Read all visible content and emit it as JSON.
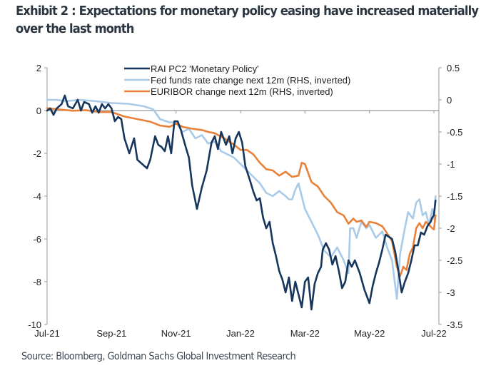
{
  "title_line1": "Exhibit 2 : Expectations for monetary policy easing have increased materially",
  "title_line2": "over the last month",
  "source": "Source: Bloomberg, Goldman Sachs Global Investment Research",
  "colors": {
    "rai": "#17365d",
    "fed": "#a9cbe8",
    "euribor": "#e8823a",
    "axis": "#999999"
  },
  "chart_data": {
    "type": "line",
    "title": "Expectations for monetary policy easing have increased materially over the last month",
    "xlabel": "",
    "ylabel_left": "",
    "ylabel_right": "",
    "x_unit": "months since Jul-21",
    "x_ticks": [
      {
        "label": "Jul-21",
        "x": 0
      },
      {
        "label": "Sep-21",
        "x": 2
      },
      {
        "label": "Nov-21",
        "x": 4
      },
      {
        "label": "Jan-22",
        "x": 6
      },
      {
        "label": "Mar-22",
        "x": 8
      },
      {
        "label": "May-22",
        "x": 10
      },
      {
        "label": "Jul-22",
        "x": 12
      }
    ],
    "xlim": [
      0,
      12
    ],
    "ylim_left": [
      -10,
      2
    ],
    "yticks_left": [
      2,
      0,
      -2,
      -4,
      -6,
      -8,
      -10
    ],
    "ylim_right": [
      -3.5,
      0.5
    ],
    "yticks_right": [
      "0.5",
      "0",
      "-0.5",
      "-1",
      "-1.5",
      "-2",
      "-2.5",
      "-3",
      "-3.5"
    ],
    "right_axis_inverted_note": "RHS, inverted",
    "legend_position": "top-center",
    "grid": false,
    "series": [
      {
        "name": "RAI PC2 'Monetary Policy'",
        "axis": "left",
        "points": [
          [
            0.0,
            0.0
          ],
          [
            0.1,
            0.1
          ],
          [
            0.2,
            -0.2
          ],
          [
            0.3,
            0.1
          ],
          [
            0.45,
            0.3
          ],
          [
            0.55,
            0.7
          ],
          [
            0.65,
            0.2
          ],
          [
            0.8,
            0.1
          ],
          [
            0.95,
            0.5
          ],
          [
            1.05,
            0.0
          ],
          [
            1.15,
            0.4
          ],
          [
            1.3,
            0.3
          ],
          [
            1.4,
            -0.1
          ],
          [
            1.5,
            0.2
          ],
          [
            1.6,
            -0.1
          ],
          [
            1.7,
            0.3
          ],
          [
            1.8,
            0.1
          ],
          [
            1.9,
            0.3
          ],
          [
            2.0,
            0.1
          ],
          [
            2.1,
            -0.5
          ],
          [
            2.2,
            -0.3
          ],
          [
            2.3,
            -0.4
          ],
          [
            2.4,
            -1.3
          ],
          [
            2.55,
            -2.0
          ],
          [
            2.7,
            -1.3
          ],
          [
            2.8,
            -2.3
          ],
          [
            2.95,
            -2.5
          ],
          [
            3.1,
            -2.7
          ],
          [
            3.2,
            -2.3
          ],
          [
            3.35,
            -1.2
          ],
          [
            3.45,
            -1.6
          ],
          [
            3.55,
            -1.7
          ],
          [
            3.65,
            -1.9
          ],
          [
            3.75,
            -1.2
          ],
          [
            3.85,
            -2.0
          ],
          [
            3.95,
            -0.5
          ],
          [
            4.05,
            -0.5
          ],
          [
            4.15,
            -0.9
          ],
          [
            4.3,
            -1.7
          ],
          [
            4.4,
            -2.2
          ],
          [
            4.5,
            -3.5
          ],
          [
            4.65,
            -4.6
          ],
          [
            4.8,
            -3.6
          ],
          [
            4.95,
            -2.8
          ],
          [
            5.1,
            -1.5
          ],
          [
            5.2,
            -1.2
          ],
          [
            5.3,
            -1.8
          ],
          [
            5.4,
            -1.0
          ],
          [
            5.55,
            -1.6
          ],
          [
            5.65,
            -1.2
          ],
          [
            5.75,
            -2.0
          ],
          [
            5.85,
            -1.3
          ],
          [
            5.95,
            -1.0
          ],
          [
            6.05,
            -1.5
          ],
          [
            6.15,
            -2.6
          ],
          [
            6.3,
            -3.3
          ],
          [
            6.4,
            -3.8
          ],
          [
            6.5,
            -4.2
          ],
          [
            6.6,
            -4.1
          ],
          [
            6.7,
            -5.0
          ],
          [
            6.8,
            -5.5
          ],
          [
            6.9,
            -5.2
          ],
          [
            7.0,
            -6.2
          ],
          [
            7.1,
            -6.8
          ],
          [
            7.2,
            -7.5
          ],
          [
            7.3,
            -7.9
          ],
          [
            7.4,
            -8.5
          ],
          [
            7.5,
            -7.8
          ],
          [
            7.6,
            -8.9
          ],
          [
            7.7,
            -8.0
          ],
          [
            7.8,
            -8.6
          ],
          [
            7.9,
            -9.2
          ],
          [
            8.0,
            -8.0
          ],
          [
            8.1,
            -7.8
          ],
          [
            8.2,
            -9.3
          ],
          [
            8.3,
            -8.1
          ],
          [
            8.4,
            -7.6
          ],
          [
            8.5,
            -7.3
          ],
          [
            8.55,
            -6.5
          ],
          [
            8.65,
            -6.2
          ],
          [
            8.75,
            -6.5
          ],
          [
            8.85,
            -7.2
          ],
          [
            8.95,
            -6.8
          ],
          [
            9.05,
            -7.5
          ],
          [
            9.15,
            -8.3
          ],
          [
            9.25,
            -8.0
          ],
          [
            9.35,
            -7.0
          ],
          [
            9.45,
            -7.3
          ],
          [
            9.55,
            -7.0
          ],
          [
            9.7,
            -7.6
          ],
          [
            9.85,
            -8.4
          ],
          [
            10.0,
            -9.0
          ],
          [
            10.1,
            -8.2
          ],
          [
            10.2,
            -7.6
          ],
          [
            10.3,
            -7.1
          ],
          [
            10.4,
            -6.5
          ],
          [
            10.5,
            -5.8
          ],
          [
            10.6,
            -5.9
          ],
          [
            10.7,
            -6.0
          ],
          [
            10.8,
            -6.6
          ],
          [
            10.9,
            -7.5
          ],
          [
            11.0,
            -8.5
          ],
          [
            11.1,
            -8.0
          ],
          [
            11.2,
            -7.6
          ],
          [
            11.3,
            -7.0
          ],
          [
            11.4,
            -6.3
          ],
          [
            11.5,
            -6.3
          ],
          [
            11.6,
            -5.7
          ],
          [
            11.7,
            -5.8
          ],
          [
            11.8,
            -5.4
          ],
          [
            11.9,
            -5.2
          ],
          [
            11.95,
            -5.0
          ],
          [
            12.0,
            -4.9
          ],
          [
            12.05,
            -4.2
          ]
        ]
      },
      {
        "name": "Fed funds rate change next 12m (RHS, inverted)",
        "axis": "right",
        "points": [
          [
            0.0,
            0.0
          ],
          [
            0.3,
            0.0
          ],
          [
            0.6,
            -0.02
          ],
          [
            1.0,
            0.0
          ],
          [
            1.5,
            -0.02
          ],
          [
            2.0,
            -0.05
          ],
          [
            2.5,
            -0.06
          ],
          [
            3.0,
            -0.1
          ],
          [
            3.3,
            -0.15
          ],
          [
            3.5,
            -0.3
          ],
          [
            3.8,
            -0.35
          ],
          [
            4.0,
            -0.35
          ],
          [
            4.2,
            -0.5
          ],
          [
            4.4,
            -0.45
          ],
          [
            4.6,
            -0.6
          ],
          [
            4.8,
            -0.55
          ],
          [
            5.0,
            -0.68
          ],
          [
            5.2,
            -0.65
          ],
          [
            5.4,
            -0.8
          ],
          [
            5.6,
            -0.85
          ],
          [
            5.8,
            -0.9
          ],
          [
            6.0,
            -1.0
          ],
          [
            6.2,
            -1.1
          ],
          [
            6.4,
            -1.2
          ],
          [
            6.6,
            -1.3
          ],
          [
            6.8,
            -1.45
          ],
          [
            7.0,
            -1.5
          ],
          [
            7.2,
            -1.42
          ],
          [
            7.4,
            -1.5
          ],
          [
            7.5,
            -1.55
          ],
          [
            7.6,
            -1.55
          ],
          [
            7.7,
            -1.4
          ],
          [
            7.8,
            -1.3
          ],
          [
            7.9,
            -1.5
          ],
          [
            8.0,
            -1.7
          ],
          [
            8.2,
            -1.9
          ],
          [
            8.4,
            -2.1
          ],
          [
            8.6,
            -2.35
          ],
          [
            8.8,
            -2.45
          ],
          [
            9.0,
            -2.3
          ],
          [
            9.2,
            -2.5
          ],
          [
            9.35,
            -2.7
          ],
          [
            9.4,
            -2.0
          ],
          [
            9.5,
            -2.0
          ],
          [
            9.6,
            -2.15
          ],
          [
            9.75,
            -1.9
          ],
          [
            9.9,
            -2.0
          ],
          [
            10.0,
            -1.95
          ],
          [
            10.2,
            -2.15
          ],
          [
            10.4,
            -2.05
          ],
          [
            10.55,
            -2.3
          ],
          [
            10.7,
            -2.5
          ],
          [
            10.85,
            -3.1
          ],
          [
            10.95,
            -2.4
          ],
          [
            11.1,
            -2.0
          ],
          [
            11.2,
            -1.75
          ],
          [
            11.35,
            -1.85
          ],
          [
            11.45,
            -1.6
          ],
          [
            11.55,
            -1.55
          ],
          [
            11.65,
            -1.8
          ],
          [
            11.75,
            -1.75
          ],
          [
            11.85,
            -1.95
          ],
          [
            11.95,
            -1.7
          ],
          [
            12.0,
            -1.85
          ],
          [
            12.05,
            -1.5
          ]
        ]
      },
      {
        "name": "EURIBOR change next 12m (RHS, inverted)",
        "axis": "right",
        "points": [
          [
            0.0,
            -0.13
          ],
          [
            0.4,
            -0.15
          ],
          [
            0.8,
            -0.17
          ],
          [
            1.2,
            -0.16
          ],
          [
            1.6,
            -0.19
          ],
          [
            2.0,
            -0.19
          ],
          [
            2.4,
            -0.26
          ],
          [
            2.8,
            -0.3
          ],
          [
            3.2,
            -0.34
          ],
          [
            3.5,
            -0.4
          ],
          [
            3.8,
            -0.42
          ],
          [
            4.0,
            -0.37
          ],
          [
            4.2,
            -0.42
          ],
          [
            4.5,
            -0.45
          ],
          [
            4.8,
            -0.47
          ],
          [
            5.0,
            -0.5
          ],
          [
            5.2,
            -0.52
          ],
          [
            5.5,
            -0.6
          ],
          [
            5.8,
            -0.7
          ],
          [
            6.0,
            -0.78
          ],
          [
            6.2,
            -0.78
          ],
          [
            6.4,
            -0.85
          ],
          [
            6.6,
            -0.98
          ],
          [
            6.8,
            -1.08
          ],
          [
            7.0,
            -1.1
          ],
          [
            7.2,
            -1.18
          ],
          [
            7.4,
            -1.12
          ],
          [
            7.6,
            -1.2
          ],
          [
            7.8,
            -1.18
          ],
          [
            7.9,
            -0.98
          ],
          [
            8.0,
            -1.0
          ],
          [
            8.2,
            -1.28
          ],
          [
            8.4,
            -1.35
          ],
          [
            8.6,
            -1.5
          ],
          [
            8.8,
            -1.6
          ],
          [
            9.0,
            -1.75
          ],
          [
            9.2,
            -1.8
          ],
          [
            9.35,
            -1.93
          ],
          [
            9.5,
            -1.85
          ],
          [
            9.6,
            -1.9
          ],
          [
            9.75,
            -1.88
          ],
          [
            9.9,
            -1.98
          ],
          [
            10.0,
            -1.9
          ],
          [
            10.2,
            -1.92
          ],
          [
            10.4,
            -1.97
          ],
          [
            10.55,
            -2.08
          ],
          [
            10.7,
            -2.2
          ],
          [
            10.85,
            -2.6
          ],
          [
            10.95,
            -2.75
          ],
          [
            11.05,
            -2.6
          ],
          [
            11.15,
            -2.65
          ],
          [
            11.25,
            -2.4
          ],
          [
            11.35,
            -2.3
          ],
          [
            11.45,
            -2.0
          ],
          [
            11.55,
            -1.92
          ],
          [
            11.65,
            -2.0
          ],
          [
            11.75,
            -1.9
          ],
          [
            11.85,
            -1.95
          ],
          [
            11.95,
            -2.0
          ],
          [
            12.0,
            -2.02
          ],
          [
            12.05,
            -1.8
          ]
        ]
      }
    ]
  }
}
